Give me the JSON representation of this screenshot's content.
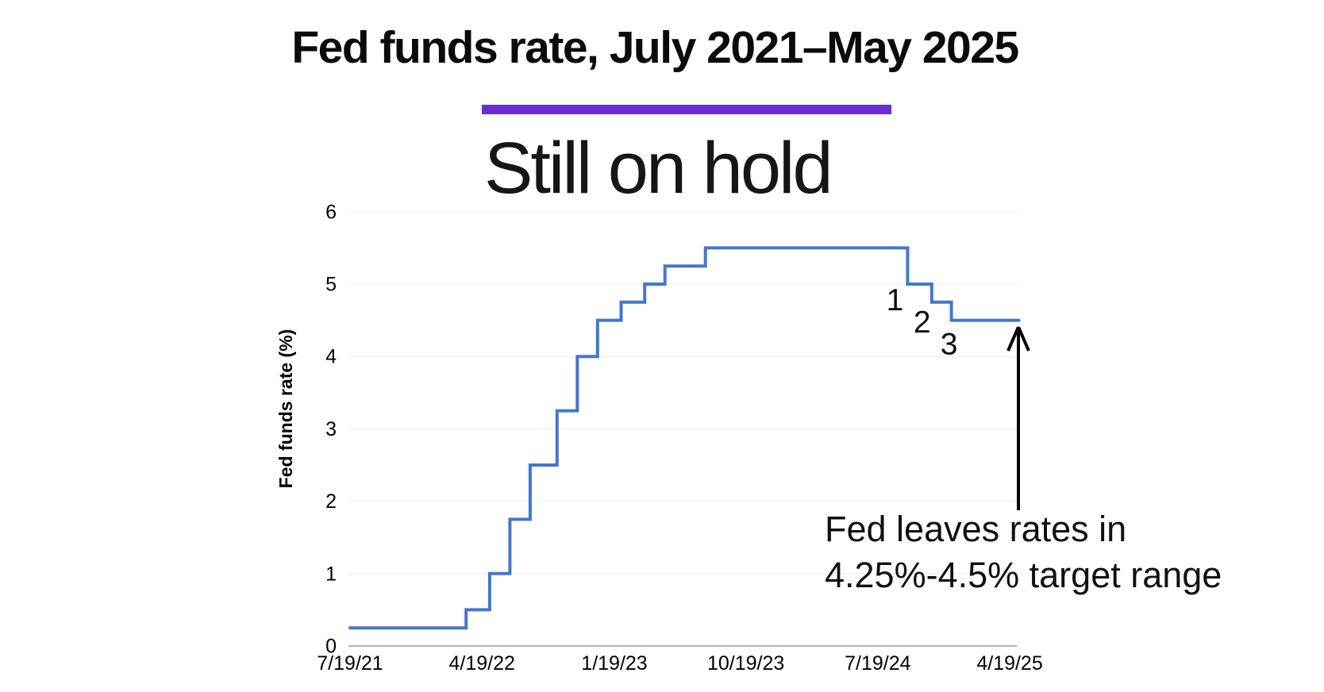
{
  "header": {
    "title": "Fed funds rate, July 2021–May 2025",
    "subtitle": "Still on hold"
  },
  "colors": {
    "accent_bar": "#6C2DD2",
    "line": "#4377CC",
    "gridline": "#f1f1f1",
    "axis_line": "#9c9c9c",
    "arrow": "#000000",
    "text": "#0b0b0b"
  },
  "note": {
    "line1": "Fed leaves rates in",
    "line2": "4.25%-4.5% target range"
  },
  "chart_data": {
    "type": "line",
    "step": true,
    "title": "Still on hold",
    "headline": "Fed funds rate, July 2021–May 2025",
    "xlabel": "",
    "ylabel": "Fed funds rate (%)",
    "ylim": [
      0,
      6
    ],
    "yticks": [
      0,
      1,
      2,
      3,
      4,
      5,
      6
    ],
    "xticks": [
      "7/19/21",
      "4/19/22",
      "1/19/23",
      "10/19/23",
      "7/19/24",
      "4/19/25"
    ],
    "xtick_dates": [
      "2021-07-19",
      "2022-04-19",
      "2023-01-19",
      "2023-10-19",
      "2024-07-19",
      "2025-04-19"
    ],
    "grid": "horizontal-faint",
    "legend": "none",
    "series": [
      {
        "name": "Fed funds rate (%)",
        "points": [
          {
            "date": "2021-07-19",
            "value": 0.25
          },
          {
            "date": "2022-03-17",
            "value": 0.5
          },
          {
            "date": "2022-05-05",
            "value": 1.0
          },
          {
            "date": "2022-06-16",
            "value": 1.75
          },
          {
            "date": "2022-07-28",
            "value": 2.5
          },
          {
            "date": "2022-09-22",
            "value": 3.25
          },
          {
            "date": "2022-11-03",
            "value": 4.0
          },
          {
            "date": "2022-12-15",
            "value": 4.5
          },
          {
            "date": "2023-02-02",
            "value": 4.75
          },
          {
            "date": "2023-03-23",
            "value": 5.0
          },
          {
            "date": "2023-05-04",
            "value": 5.25
          },
          {
            "date": "2023-07-27",
            "value": 5.5
          },
          {
            "date": "2024-09-19",
            "value": 5.0
          },
          {
            "date": "2024-11-08",
            "value": 4.75
          },
          {
            "date": "2024-12-19",
            "value": 4.5
          },
          {
            "date": "2025-05-08",
            "value": 4.5
          }
        ]
      }
    ],
    "annotations": {
      "cut_labels": [
        {
          "label": "1",
          "date": "2024-09-19"
        },
        {
          "label": "2",
          "date": "2024-11-08"
        },
        {
          "label": "3",
          "date": "2024-12-19"
        }
      ],
      "arrow_note_line1": "Fed leaves rates in",
      "arrow_note_line2": "4.25%-4.5% target range"
    }
  }
}
